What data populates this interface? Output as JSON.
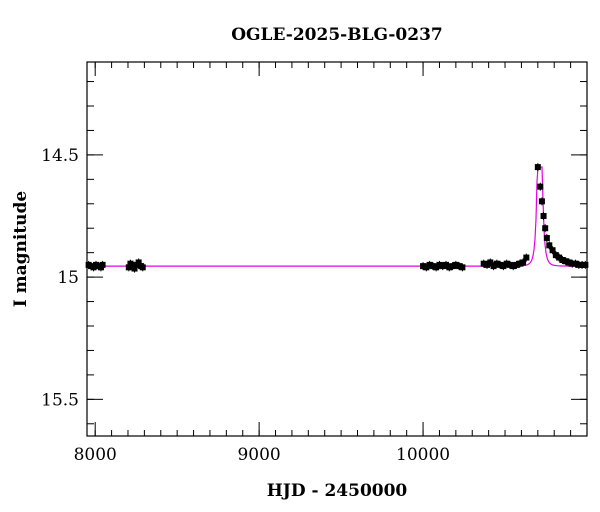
{
  "chart_data": {
    "type": "scatter",
    "title": "OGLE-2025-BLG-0237",
    "xlabel": "HJD - 2450000",
    "ylabel": "I magnitude",
    "xlim": [
      7950,
      11000
    ],
    "ylim": [
      15.65,
      14.12
    ],
    "y_inverted": true,
    "xticks": [
      8000,
      9000,
      10000
    ],
    "xtick_labels": [
      "8000",
      "9000",
      "10000"
    ],
    "yticks": [
      14.5,
      15,
      15.5
    ],
    "ytick_labels": [
      "14.5",
      "15",
      "15.5"
    ],
    "x_minor_step": 100,
    "y_minor_step": 0.1,
    "grid": false,
    "baseline_mag": 14.955,
    "peak_mag": 14.55,
    "series": [
      {
        "kind": "points",
        "color": "#000000",
        "x": [
          7960,
          7975,
          7990,
          8005,
          8020,
          8035,
          8045,
          8205,
          8215,
          8225,
          8240,
          8255,
          8265,
          8280,
          8290,
          10000,
          10020,
          10040,
          10060,
          10080,
          10100,
          10120,
          10140,
          10160,
          10180,
          10200,
          10220,
          10240,
          10370,
          10390,
          10410,
          10430,
          10450,
          10470,
          10490,
          10510,
          10530,
          10550,
          10570,
          10590,
          10610,
          10630,
          10700,
          10715,
          10725,
          10735,
          10745,
          10755,
          10770,
          10790,
          10810,
          10830,
          10850,
          10870,
          10890,
          10910,
          10930,
          10950,
          10970,
          10990
        ],
        "y": [
          14.95,
          14.955,
          14.96,
          14.95,
          14.955,
          14.96,
          14.95,
          14.96,
          14.945,
          14.95,
          14.965,
          14.95,
          14.94,
          14.955,
          14.96,
          14.955,
          14.96,
          14.95,
          14.955,
          14.96,
          14.95,
          14.955,
          14.95,
          14.96,
          14.955,
          14.95,
          14.955,
          14.96,
          14.945,
          14.95,
          14.94,
          14.955,
          14.945,
          14.95,
          14.955,
          14.945,
          14.95,
          14.955,
          14.95,
          14.945,
          14.94,
          14.92,
          14.55,
          14.63,
          14.69,
          14.75,
          14.8,
          14.84,
          14.87,
          14.89,
          14.91,
          14.92,
          14.93,
          14.935,
          14.94,
          14.945,
          14.945,
          14.95,
          14.95,
          14.95
        ]
      },
      {
        "kind": "model",
        "color": "#e600e6",
        "model": "paczynski",
        "t0": 10712,
        "tE": 18,
        "u0": 0.15
      }
    ]
  }
}
